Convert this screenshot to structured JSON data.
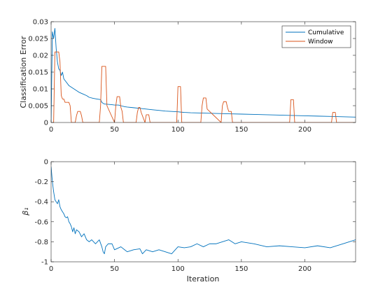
{
  "chart_data": [
    {
      "type": "line",
      "title": "",
      "xlabel": "",
      "ylabel": "Classification Error",
      "xlim": [
        0,
        240
      ],
      "ylim": [
        0,
        0.03
      ],
      "xticks": [
        0,
        50,
        100,
        150,
        200
      ],
      "yticks": [
        0,
        0.005,
        0.01,
        0.015,
        0.02,
        0.025,
        0.03
      ],
      "xtick_labels": [
        "0",
        "50",
        "100",
        "150",
        "200"
      ],
      "ytick_labels": [
        "0",
        "0.005",
        "0.01",
        "0.015",
        "0.02",
        "0.025",
        "0.03"
      ],
      "grid": false,
      "legend": "top-right",
      "series": [
        {
          "name": "Cumulative",
          "color": "#0072BD",
          "x": [
            0,
            1,
            2,
            3,
            4,
            5,
            6,
            7,
            8,
            9,
            10,
            11,
            12,
            14,
            16,
            18,
            20,
            22,
            25,
            28,
            30,
            33,
            36,
            39,
            40,
            41,
            42,
            45,
            48,
            50,
            53,
            55,
            58,
            60,
            65,
            70,
            75,
            80,
            85,
            90,
            95,
            100,
            102,
            105,
            110,
            120,
            130,
            140,
            150,
            160,
            170,
            180,
            190,
            200,
            210,
            220,
            230,
            240
          ],
          "y": [
            0.0,
            0.027,
            0.025,
            0.028,
            0.022,
            0.018,
            0.016,
            0.0155,
            0.014,
            0.015,
            0.013,
            0.0125,
            0.012,
            0.011,
            0.0105,
            0.01,
            0.0095,
            0.009,
            0.0085,
            0.008,
            0.0075,
            0.0072,
            0.007,
            0.0068,
            0.006,
            0.0057,
            0.0055,
            0.0054,
            0.0053,
            0.0052,
            0.0052,
            0.005,
            0.0047,
            0.0046,
            0.0044,
            0.0042,
            0.004,
            0.0038,
            0.0036,
            0.0034,
            0.0033,
            0.0032,
            0.0031,
            0.003,
            0.0029,
            0.0028,
            0.0027,
            0.0026,
            0.0025,
            0.0024,
            0.0023,
            0.0022,
            0.0021,
            0.002,
            0.0019,
            0.0018,
            0.0017,
            0.0016
          ]
        },
        {
          "name": "Window",
          "color": "#D95319",
          "x": [
            0,
            1,
            2,
            3,
            4,
            5,
            6,
            7,
            8,
            9,
            10,
            11,
            12,
            13,
            14,
            15,
            16,
            18,
            19,
            20,
            21,
            22,
            23,
            24,
            25,
            38,
            39,
            40,
            41,
            42,
            43,
            44,
            50,
            51,
            52,
            53,
            54,
            55,
            56,
            57,
            67,
            68,
            69,
            70,
            71,
            74,
            75,
            76,
            77,
            78,
            99,
            100,
            101,
            102,
            103,
            118,
            119,
            120,
            121,
            122,
            123,
            134,
            135,
            136,
            137,
            138,
            139,
            140,
            141,
            142,
            143,
            188,
            189,
            190,
            191,
            192,
            221,
            222,
            223,
            224,
            225,
            240
          ],
          "y": [
            0.0,
            0.0,
            0.0,
            0.021,
            0.021,
            0.021,
            0.021,
            0.018,
            0.008,
            0.007,
            0.007,
            0.006,
            0.006,
            0.006,
            0.006,
            0.005,
            0.0,
            0.0,
            0.0,
            0.002,
            0.0033,
            0.0033,
            0.0033,
            0.002,
            0.0,
            0.0,
            0.005,
            0.0167,
            0.0167,
            0.0167,
            0.0167,
            0.005,
            0.0,
            0.005,
            0.0077,
            0.0077,
            0.0077,
            0.0045,
            0.0033,
            0.0,
            0.0,
            0.003,
            0.0045,
            0.0045,
            0.003,
            0.0,
            0.0023,
            0.0023,
            0.0023,
            0.0,
            0.0,
            0.0107,
            0.0107,
            0.0107,
            0.0,
            0.0,
            0.005,
            0.0073,
            0.0073,
            0.0073,
            0.004,
            0.0,
            0.005,
            0.0062,
            0.0062,
            0.0062,
            0.0045,
            0.0033,
            0.0033,
            0.0033,
            0.0,
            0.0,
            0.0068,
            0.0068,
            0.0068,
            0.0,
            0.0,
            0.003,
            0.003,
            0.003,
            0.0,
            0.0
          ]
        }
      ]
    },
    {
      "type": "line",
      "title": "",
      "xlabel": "Iteration",
      "ylabel": "β₁",
      "xlim": [
        0,
        240
      ],
      "ylim": [
        -1,
        0
      ],
      "xticks": [
        0,
        50,
        100,
        150,
        200
      ],
      "yticks": [
        -1,
        -0.8,
        -0.6,
        -0.4,
        -0.2,
        0
      ],
      "xtick_labels": [
        "0",
        "50",
        "100",
        "150",
        "200"
      ],
      "ytick_labels": [
        "-1",
        "-0.8",
        "-0.6",
        "-0.4",
        "-0.2",
        "0"
      ],
      "grid": false,
      "series": [
        {
          "color": "#0072BD",
          "x": [
            0,
            1,
            2,
            3,
            4,
            5,
            6,
            7,
            8,
            9,
            10,
            11,
            12,
            13,
            14,
            15,
            16,
            17,
            18,
            19,
            20,
            22,
            24,
            26,
            28,
            30,
            32,
            35,
            38,
            40,
            41,
            42,
            43,
            45,
            48,
            50,
            55,
            58,
            60,
            65,
            70,
            72,
            75,
            80,
            85,
            90,
            95,
            100,
            105,
            110,
            115,
            120,
            125,
            130,
            135,
            140,
            145,
            150,
            160,
            170,
            180,
            190,
            200,
            210,
            220,
            230,
            235,
            240
          ],
          "y": [
            -0.05,
            -0.2,
            -0.3,
            -0.38,
            -0.4,
            -0.42,
            -0.38,
            -0.45,
            -0.48,
            -0.5,
            -0.52,
            -0.55,
            -0.56,
            -0.55,
            -0.6,
            -0.62,
            -0.65,
            -0.7,
            -0.66,
            -0.72,
            -0.68,
            -0.7,
            -0.75,
            -0.72,
            -0.78,
            -0.8,
            -0.78,
            -0.82,
            -0.78,
            -0.85,
            -0.9,
            -0.92,
            -0.85,
            -0.82,
            -0.82,
            -0.88,
            -0.85,
            -0.88,
            -0.9,
            -0.88,
            -0.87,
            -0.92,
            -0.88,
            -0.9,
            -0.88,
            -0.9,
            -0.92,
            -0.85,
            -0.86,
            -0.85,
            -0.82,
            -0.85,
            -0.82,
            -0.82,
            -0.8,
            -0.78,
            -0.82,
            -0.8,
            -0.82,
            -0.85,
            -0.84,
            -0.85,
            -0.86,
            -0.84,
            -0.86,
            -0.82,
            -0.8,
            -0.78
          ]
        }
      ]
    }
  ]
}
